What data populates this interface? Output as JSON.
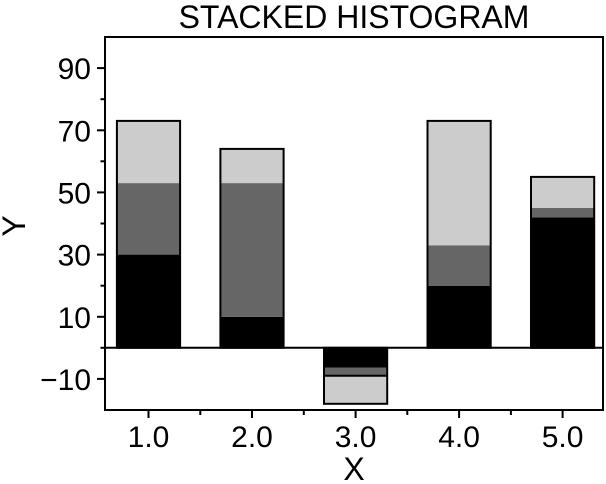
{
  "figure": {
    "title": "STACKED HISTOGRAM",
    "background_color": "#ffffff"
  },
  "chart_data": {
    "type": "bar",
    "stacked": true,
    "title": "STACKED HISTOGRAM",
    "xlabel": "X",
    "ylabel": "Y",
    "categories": [
      1.0,
      2.0,
      3.0,
      4.0,
      5.0
    ],
    "series": [
      {
        "name": "segment-bottom-black",
        "color": "#000000",
        "values": [
          30,
          10,
          -6,
          20,
          42
        ]
      },
      {
        "name": "segment-middle-dark-gray",
        "color": "#666666",
        "values": [
          23,
          43,
          -3,
          13,
          3
        ]
      },
      {
        "name": "segment-top-light-gray",
        "color": "#cccccc",
        "values": [
          20,
          11,
          -9,
          40,
          10
        ]
      }
    ],
    "stack_totals": [
      73,
      64,
      -18,
      73,
      55
    ],
    "bar_width": 0.61,
    "xlim": [
      0.58,
      5.39
    ],
    "ylim": [
      -20,
      100
    ],
    "x_ticks": [
      {
        "value": 1,
        "label": "1.0"
      },
      {
        "value": 2,
        "label": "2.0"
      },
      {
        "value": 3,
        "label": "3.0"
      },
      {
        "value": 4,
        "label": "4.0"
      },
      {
        "value": 5,
        "label": "5.0"
      }
    ],
    "x_minor_ticks": [
      1.5,
      2.5,
      3.5,
      4.5
    ],
    "y_ticks": [
      {
        "value": 90,
        "label": "90"
      },
      {
        "value": 70,
        "label": "70"
      },
      {
        "value": 50,
        "label": "50"
      },
      {
        "value": 30,
        "label": "30"
      },
      {
        "value": 10,
        "label": "10"
      },
      {
        "value": -10,
        "label": "−10"
      }
    ],
    "y_minor_ticks": [
      80,
      60,
      40,
      20,
      0
    ],
    "baseline": 0,
    "grid": false,
    "legend": false,
    "axis_color": "#000000",
    "text_color": "#000000"
  }
}
